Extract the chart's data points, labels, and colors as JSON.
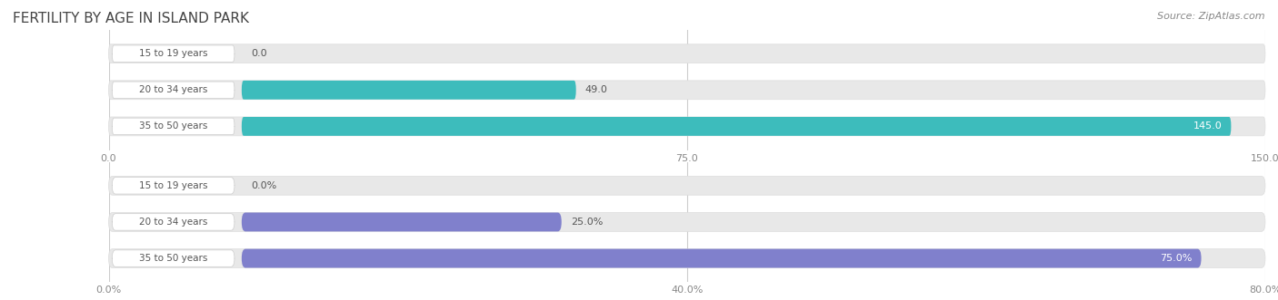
{
  "title": "FERTILITY BY AGE IN ISLAND PARK",
  "source": "Source: ZipAtlas.com",
  "top_chart": {
    "categories": [
      "15 to 19 years",
      "20 to 34 years",
      "35 to 50 years"
    ],
    "values": [
      0.0,
      49.0,
      145.0
    ],
    "xlim_max": 150,
    "xticks": [
      0.0,
      75.0,
      150.0
    ],
    "bar_color": "#3dbcbc",
    "bar_height": 0.52
  },
  "bottom_chart": {
    "categories": [
      "15 to 19 years",
      "20 to 34 years",
      "35 to 50 years"
    ],
    "values": [
      0.0,
      25.0,
      75.0
    ],
    "xlim_max": 80,
    "xticks": [
      0.0,
      40.0,
      80.0
    ],
    "bar_color": "#8080cc",
    "bar_height": 0.52
  },
  "fig_bg_color": "#ffffff",
  "bar_bg_color": "#e8e8e8",
  "label_pill_color": "#ffffff",
  "label_text_color": "#555555",
  "value_text_color_inside": "#ffffff",
  "value_text_color_outside": "#555555",
  "title_color": "#444444",
  "source_color": "#888888",
  "grid_color": "#cccccc",
  "tick_color": "#888888"
}
